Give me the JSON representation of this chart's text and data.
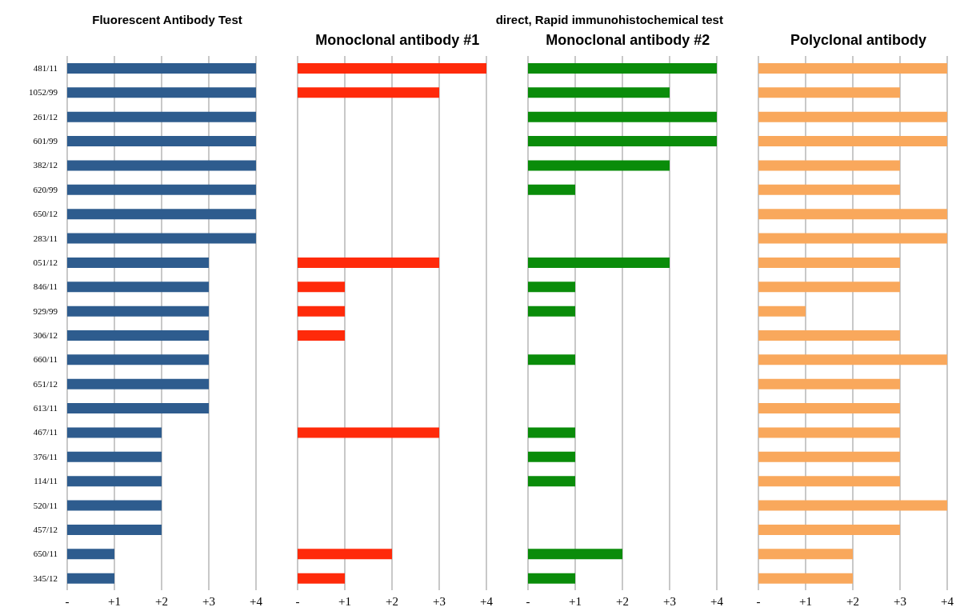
{
  "chart_data": [
    {
      "type": "bar",
      "orientation": "horizontal",
      "title": "Fluorescent Antibody Test",
      "categories": [
        "481/11",
        "1052/99",
        "261/12",
        "601/99",
        "382/12",
        "620/99",
        "650/12",
        "283/11",
        "051/12",
        "846/11",
        "929/99",
        "306/12",
        "660/11",
        "651/12",
        "613/11",
        "467/11",
        "376/11",
        "114/11",
        "520/11",
        "457/12",
        "650/11",
        "345/12"
      ],
      "values": [
        4,
        4,
        4,
        4,
        4,
        4,
        4,
        4,
        3,
        3,
        3,
        3,
        3,
        3,
        3,
        2,
        2,
        2,
        2,
        2,
        1,
        1
      ],
      "color": "#2e5c8e",
      "xlim": [
        0,
        4
      ],
      "xticks": [
        {
          "value": 0,
          "label": "-"
        },
        {
          "value": 1,
          "label": "+1"
        },
        {
          "value": 2,
          "label": "+2"
        },
        {
          "value": 3,
          "label": "+3"
        },
        {
          "value": 4,
          "label": "+4"
        }
      ],
      "grid": "x"
    },
    {
      "type": "bar",
      "orientation": "horizontal",
      "title": "Monoclonal antibody #1",
      "categories": [
        null,
        null,
        null,
        null,
        null,
        null,
        null,
        null,
        null,
        null,
        null,
        null,
        null,
        null,
        null,
        null,
        null,
        null,
        null,
        null,
        null,
        null
      ],
      "values": [
        4,
        3,
        0,
        0,
        0,
        0,
        0,
        0,
        3,
        1,
        1,
        1,
        0,
        0,
        0,
        3,
        0,
        0,
        0,
        0,
        2,
        1
      ],
      "color": "#ff2a0a",
      "xlim": [
        0,
        4
      ],
      "xticks": [
        {
          "value": 0,
          "label": "-"
        },
        {
          "value": 1,
          "label": "+1"
        },
        {
          "value": 2,
          "label": "+2"
        },
        {
          "value": 3,
          "label": "+3"
        },
        {
          "value": 4,
          "label": "+4"
        }
      ],
      "grid": "x",
      "tick_labels": "x"
    },
    {
      "type": "bar",
      "orientation": "horizontal",
      "title": "Monoclonal antibody #2",
      "subtitle": "direct, Rapid immunohistochemical test",
      "categories": [
        null,
        null,
        null,
        null,
        null,
        null,
        null,
        null,
        null,
        null,
        null,
        null,
        null,
        null,
        null,
        null,
        null,
        null,
        null,
        null,
        null,
        null
      ],
      "values": [
        4,
        3,
        4,
        4,
        3,
        1,
        0,
        0,
        3,
        1,
        1,
        0,
        1,
        0,
        0,
        1,
        1,
        1,
        0,
        0,
        2,
        1
      ],
      "color": "#0a8c0a",
      "xlim": [
        0,
        4
      ],
      "xticks": [
        {
          "value": 0,
          "label": "-"
        },
        {
          "value": 1,
          "label": "+1"
        },
        {
          "value": 2,
          "label": "+2"
        },
        {
          "value": 3,
          "label": "+3"
        },
        {
          "value": 4,
          "label": "+4"
        }
      ],
      "grid": "x",
      "tick_labels": "x"
    },
    {
      "type": "bar",
      "orientation": "horizontal",
      "title": "Polyclonal antibody",
      "categories": [
        null,
        null,
        null,
        null,
        null,
        null,
        null,
        null,
        null,
        null,
        null,
        null,
        null,
        null,
        null,
        null,
        null,
        null,
        null,
        null,
        null,
        null
      ],
      "values": [
        4,
        3,
        4,
        4,
        3,
        3,
        4,
        4,
        3,
        3,
        1,
        3,
        4,
        3,
        3,
        3,
        3,
        3,
        4,
        3,
        2,
        2
      ],
      "color": "#f9a85c",
      "xlim": [
        0,
        4
      ],
      "xticks": [
        {
          "value": 0,
          "label": "-"
        },
        {
          "value": 1,
          "label": "+1"
        },
        {
          "value": 2,
          "label": "+2"
        },
        {
          "value": 3,
          "label": "+3"
        },
        {
          "value": 4,
          "label": "+4"
        }
      ],
      "grid": "x",
      "tick_labels": "x"
    }
  ]
}
